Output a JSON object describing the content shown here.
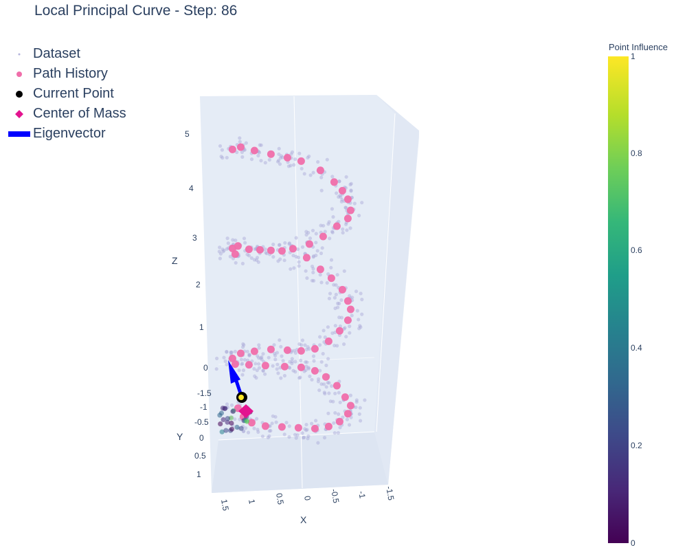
{
  "title": "Local Principal Curve - Step: 86",
  "legend": [
    {
      "label": "Dataset",
      "icon": "small-dot-icon",
      "color": "#b4b4dc"
    },
    {
      "label": "Path History",
      "icon": "pink-circle-icon",
      "color": "#f06eaa"
    },
    {
      "label": "Current Point",
      "icon": "black-circle-icon",
      "color": "#000000"
    },
    {
      "label": "Center of Mass",
      "icon": "magenta-diamond-icon",
      "color": "#e3138f"
    },
    {
      "label": "Eigenvector",
      "icon": "blue-bar-icon",
      "color": "#0000ff"
    }
  ],
  "colorbar": {
    "title": "Point Influence",
    "ticks": [
      "0",
      "0.2",
      "0.4",
      "0.6",
      "0.8",
      "1"
    ],
    "colorscale": "viridis"
  },
  "axes": {
    "x": {
      "title": "X",
      "ticks": [
        "1.5",
        "1",
        "0.5",
        "0",
        "-0.5",
        "-1",
        "-1.5"
      ]
    },
    "y": {
      "title": "Y",
      "ticks": [
        "-1.5",
        "-1",
        "-0.5",
        "0",
        "0.5",
        "1"
      ]
    },
    "z": {
      "title": "Z",
      "ticks": [
        "0",
        "1",
        "2",
        "3",
        "4",
        "5"
      ]
    }
  },
  "chart_data": {
    "type": "scatter",
    "projection": "3d",
    "title": "Local Principal Curve - Step: 86",
    "xlabel": "X",
    "ylabel": "Y",
    "zlabel": "Z",
    "xlim": [
      -1.5,
      1.5
    ],
    "ylim": [
      -1.5,
      1
    ],
    "zlim": [
      0,
      5.5
    ],
    "legend_position": "top-left",
    "colorbar_title": "Point Influence",
    "colorbar_range": [
      0,
      1
    ],
    "series": [
      {
        "name": "Path History",
        "color": "#f06eaa",
        "points": [
          [
            1.3,
            0.4,
            5.0
          ],
          [
            1.15,
            0.4,
            5.05
          ],
          [
            0.9,
            0.4,
            5.0
          ],
          [
            0.6,
            0.4,
            4.95
          ],
          [
            0.3,
            0.4,
            4.9
          ],
          [
            0.05,
            0.4,
            4.85
          ],
          [
            -0.3,
            0.4,
            4.7
          ],
          [
            -0.55,
            0.4,
            4.5
          ],
          [
            -0.7,
            0.4,
            4.35
          ],
          [
            -0.8,
            0.4,
            4.2
          ],
          [
            -0.85,
            0.4,
            4.0
          ],
          [
            -0.8,
            0.4,
            3.85
          ],
          [
            -0.6,
            0.4,
            3.7
          ],
          [
            -0.35,
            0.4,
            3.5
          ],
          [
            -0.1,
            0.4,
            3.35
          ],
          [
            0.2,
            0.4,
            3.25
          ],
          [
            0.4,
            0.4,
            3.2
          ],
          [
            0.6,
            0.4,
            3.2
          ],
          [
            0.8,
            0.4,
            3.2
          ],
          [
            1.0,
            0.4,
            3.2
          ],
          [
            1.2,
            0.4,
            3.25
          ],
          [
            1.3,
            0.4,
            3.2
          ],
          [
            1.25,
            0.4,
            3.1
          ],
          [
            -0.05,
            0.4,
            3.1
          ],
          [
            -0.3,
            0.4,
            2.9
          ],
          [
            -0.5,
            0.4,
            2.75
          ],
          [
            -0.7,
            0.4,
            2.55
          ],
          [
            -0.8,
            0.4,
            2.35
          ],
          [
            -0.85,
            0.4,
            2.2
          ],
          [
            -0.8,
            0.4,
            2.0
          ],
          [
            -0.65,
            0.4,
            1.8
          ],
          [
            -0.45,
            0.4,
            1.6
          ],
          [
            -0.2,
            0.4,
            1.45
          ],
          [
            0.05,
            0.4,
            1.4
          ],
          [
            0.3,
            0.4,
            1.4
          ],
          [
            0.6,
            0.4,
            1.4
          ],
          [
            0.9,
            0.4,
            1.35
          ],
          [
            1.15,
            0.4,
            1.3
          ],
          [
            1.3,
            0.4,
            1.2
          ],
          [
            1.25,
            0.4,
            1.1
          ],
          [
            1.0,
            0.4,
            1.1
          ],
          [
            0.7,
            0.4,
            1.1
          ],
          [
            0.35,
            0.4,
            1.1
          ],
          [
            0.05,
            0.4,
            1.1
          ],
          [
            -0.2,
            0.4,
            1.05
          ],
          [
            -0.4,
            0.4,
            0.95
          ],
          [
            -0.6,
            0.4,
            0.8
          ],
          [
            -0.75,
            0.4,
            0.6
          ],
          [
            -0.85,
            0.4,
            0.45
          ],
          [
            -0.8,
            0.4,
            0.3
          ],
          [
            -0.65,
            0.4,
            0.15
          ],
          [
            -0.45,
            0.4,
            0.05
          ],
          [
            -0.2,
            0.4,
            0.0
          ],
          [
            0.1,
            0.4,
            0.0
          ],
          [
            0.4,
            0.4,
            0.0
          ],
          [
            0.7,
            0.4,
            0.0
          ],
          [
            0.95,
            0.4,
            0.05
          ],
          [
            1.1,
            0.4,
            0.15
          ],
          [
            1.2,
            0.4,
            0.3
          ]
        ]
      },
      {
        "name": "Current Point",
        "color": "#000000",
        "points": [
          [
            1.25,
            -1.0,
            0.55
          ]
        ]
      },
      {
        "name": "Center of Mass",
        "color": "#e3138f",
        "points": [
          [
            1.15,
            -0.8,
            0.35
          ]
        ]
      },
      {
        "name": "Eigenvector",
        "color": "#0000ff",
        "start": [
          1.25,
          -1.0,
          0.55
        ],
        "end": [
          1.35,
          -1.2,
          0.95
        ]
      }
    ]
  }
}
